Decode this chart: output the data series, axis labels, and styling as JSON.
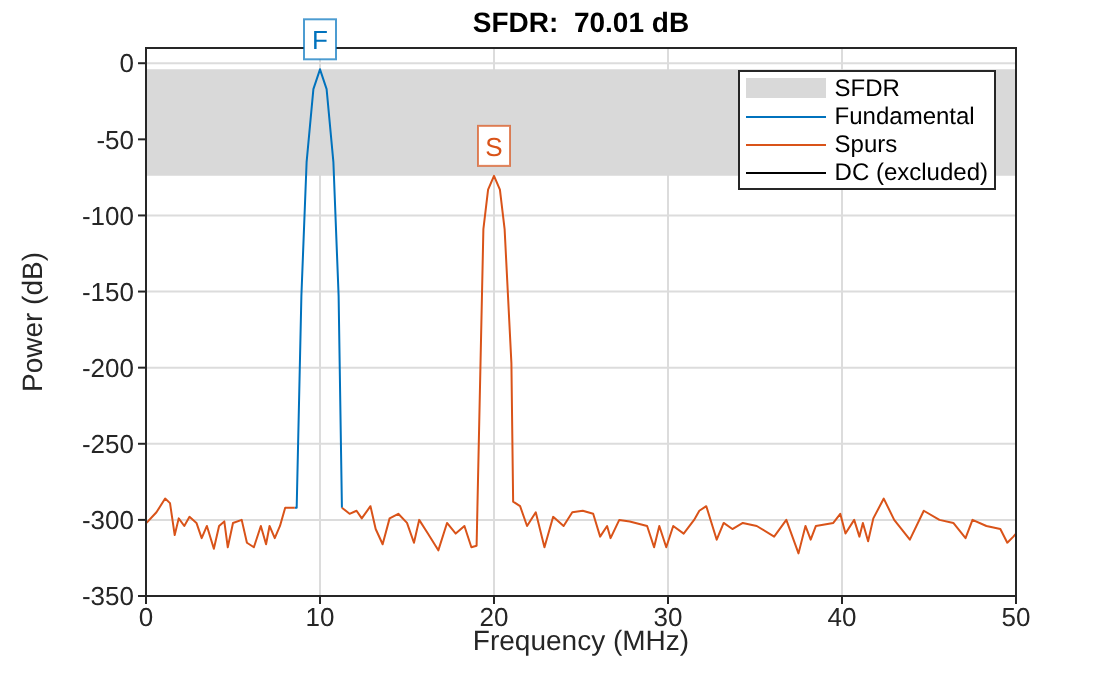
{
  "chart_data": {
    "type": "line",
    "title": "SFDR:  70.01 dB",
    "xlabel": "Frequency (MHz)",
    "ylabel": "Power (dB)",
    "xlim": [
      0,
      50
    ],
    "xticks": [
      0,
      10,
      20,
      30,
      40,
      50
    ],
    "ylim": [
      -350,
      10
    ],
    "yticks": [
      -350,
      -300,
      -250,
      -200,
      -150,
      -100,
      -50,
      0
    ],
    "grid": true,
    "legend": "top right",
    "bands": [
      {
        "axis": "y",
        "from": -74,
        "to": -4,
        "label": "SFDR",
        "color": "#d9d9d9"
      }
    ],
    "annotations": [
      {
        "text": "F",
        "x": 10,
        "y": -4
      },
      {
        "text": "S",
        "x": 20,
        "y": -74
      }
    ],
    "series": [
      {
        "name": "Fundamental",
        "color": "#0072bd",
        "x": [
          8.55,
          8.66,
          8.93,
          9.23,
          9.62,
          10,
          10.38,
          10.77,
          11.07,
          11.26
        ],
        "values": [
          -292,
          -292,
          -153,
          -65,
          -17,
          -4,
          -17,
          -65,
          -153,
          -292
        ]
      },
      {
        "name": "Spurs",
        "color": "#d95319",
        "x": [
          0.03,
          0.6,
          1.1,
          1.38,
          1.65,
          1.88,
          2.2,
          2.5,
          2.9,
          3.2,
          3.5,
          3.9,
          4.2,
          4.5,
          4.7,
          5.0,
          5.5,
          5.8,
          6.2,
          6.6,
          6.9,
          7.1,
          7.4,
          7.7,
          8.0,
          8.55,
          10,
          11.26,
          11.7,
          12.1,
          12.4,
          12.9,
          13.2,
          13.6,
          14.0,
          14.5,
          15.0,
          15.4,
          15.7,
          16.2,
          16.8,
          17.3,
          17.8,
          18.3,
          18.7,
          19.0,
          19.39,
          19.66,
          20,
          20.34,
          20.61,
          21.0,
          21.1,
          21.5,
          21.9,
          22.4,
          22.9,
          23.4,
          24.0,
          24.5,
          25.1,
          25.7,
          26.1,
          26.5,
          26.7,
          27.2,
          27.8,
          28.8,
          29.2,
          29.5,
          29.9,
          30.3,
          30.9,
          31.5,
          31.8,
          32.2,
          32.8,
          33.2,
          33.7,
          34.3,
          35.1,
          36.1,
          36.8,
          37.5,
          37.9,
          38.2,
          38.5,
          39.5,
          39.9,
          40.2,
          40.7,
          41.0,
          41.2,
          41.5,
          41.8,
          42.4,
          43.0,
          43.9,
          44.7,
          45.6,
          46.4,
          47.1,
          47.5,
          48.3,
          49.1,
          49.5,
          49.85,
          50
        ],
        "values": [
          -302,
          -295,
          -286,
          -289,
          -310,
          -299,
          -304,
          -298,
          -302,
          -312,
          -304,
          -319,
          -304,
          -301,
          -318,
          -302,
          -300,
          -315,
          -318,
          -304,
          -316,
          -304,
          -312,
          -304,
          -292,
          -292,
          null,
          -292,
          -296,
          -294,
          -299,
          -291,
          -306,
          -316,
          -299,
          -296,
          -302,
          -315,
          -300,
          -309,
          -320,
          -302,
          -309,
          -304,
          -318,
          -317,
          -109,
          -83,
          -74,
          -83,
          -109,
          -197,
          -288,
          -291,
          -304,
          -295,
          -318,
          -298,
          -304,
          -295,
          -294,
          -296,
          -311,
          -304,
          -312,
          -300,
          -301,
          -304,
          -318,
          -304,
          -318,
          -304,
          -309,
          -300,
          -294,
          -291,
          -313,
          -302,
          -306,
          -302,
          -304,
          -311,
          -300,
          -322,
          -304,
          -313,
          -304,
          -302,
          -296,
          -309,
          -300,
          -311,
          -302,
          -314,
          -299,
          -286,
          -300,
          -313,
          -294,
          -300,
          -302,
          -312,
          -300,
          -304,
          -306,
          -315,
          -311,
          -309
        ]
      },
      {
        "name": "DC (excluded)",
        "color": "#000000"
      }
    ]
  }
}
